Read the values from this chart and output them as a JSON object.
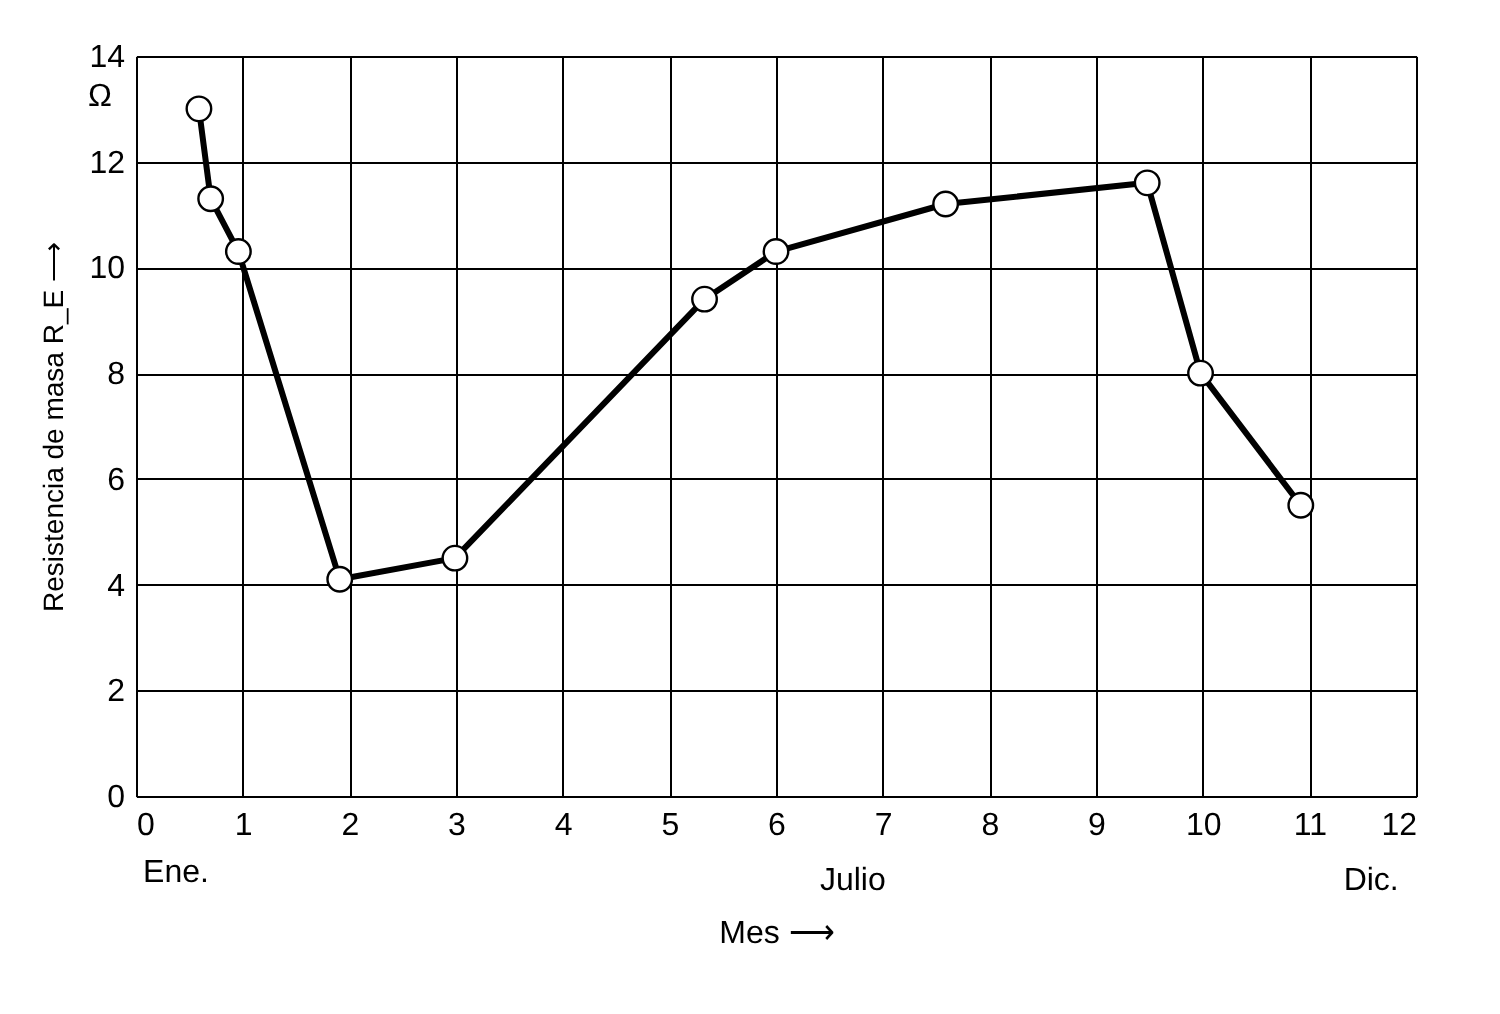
{
  "chart_data": {
    "type": "line",
    "xlabel": "Mes ⟶",
    "ylabel": "Resistencia de masa R_E ⟶",
    "x": [
      0.59,
      0.7,
      0.96,
      1.91,
      2.99,
      5.33,
      6.0,
      7.59,
      9.48,
      9.98,
      10.92
    ],
    "series": [
      {
        "color": "#000000",
        "values": [
          13.0,
          11.3,
          10.3,
          4.1,
          4.5,
          9.4,
          10.3,
          11.2,
          11.6,
          8.0,
          5.5
        ]
      }
    ],
    "xlim": [
      0,
      12
    ],
    "xticks": [
      0,
      1,
      2,
      3,
      4,
      5,
      6,
      7,
      8,
      9,
      10,
      11,
      12
    ],
    "ylim": [
      0,
      14
    ],
    "yticks": [
      0,
      2,
      4,
      6,
      8,
      10,
      12,
      14
    ],
    "grid": true,
    "marker": "circle",
    "line_style": "solid",
    "annotations": [
      "Ω",
      "Ene.",
      "Julio",
      "Dic."
    ]
  }
}
